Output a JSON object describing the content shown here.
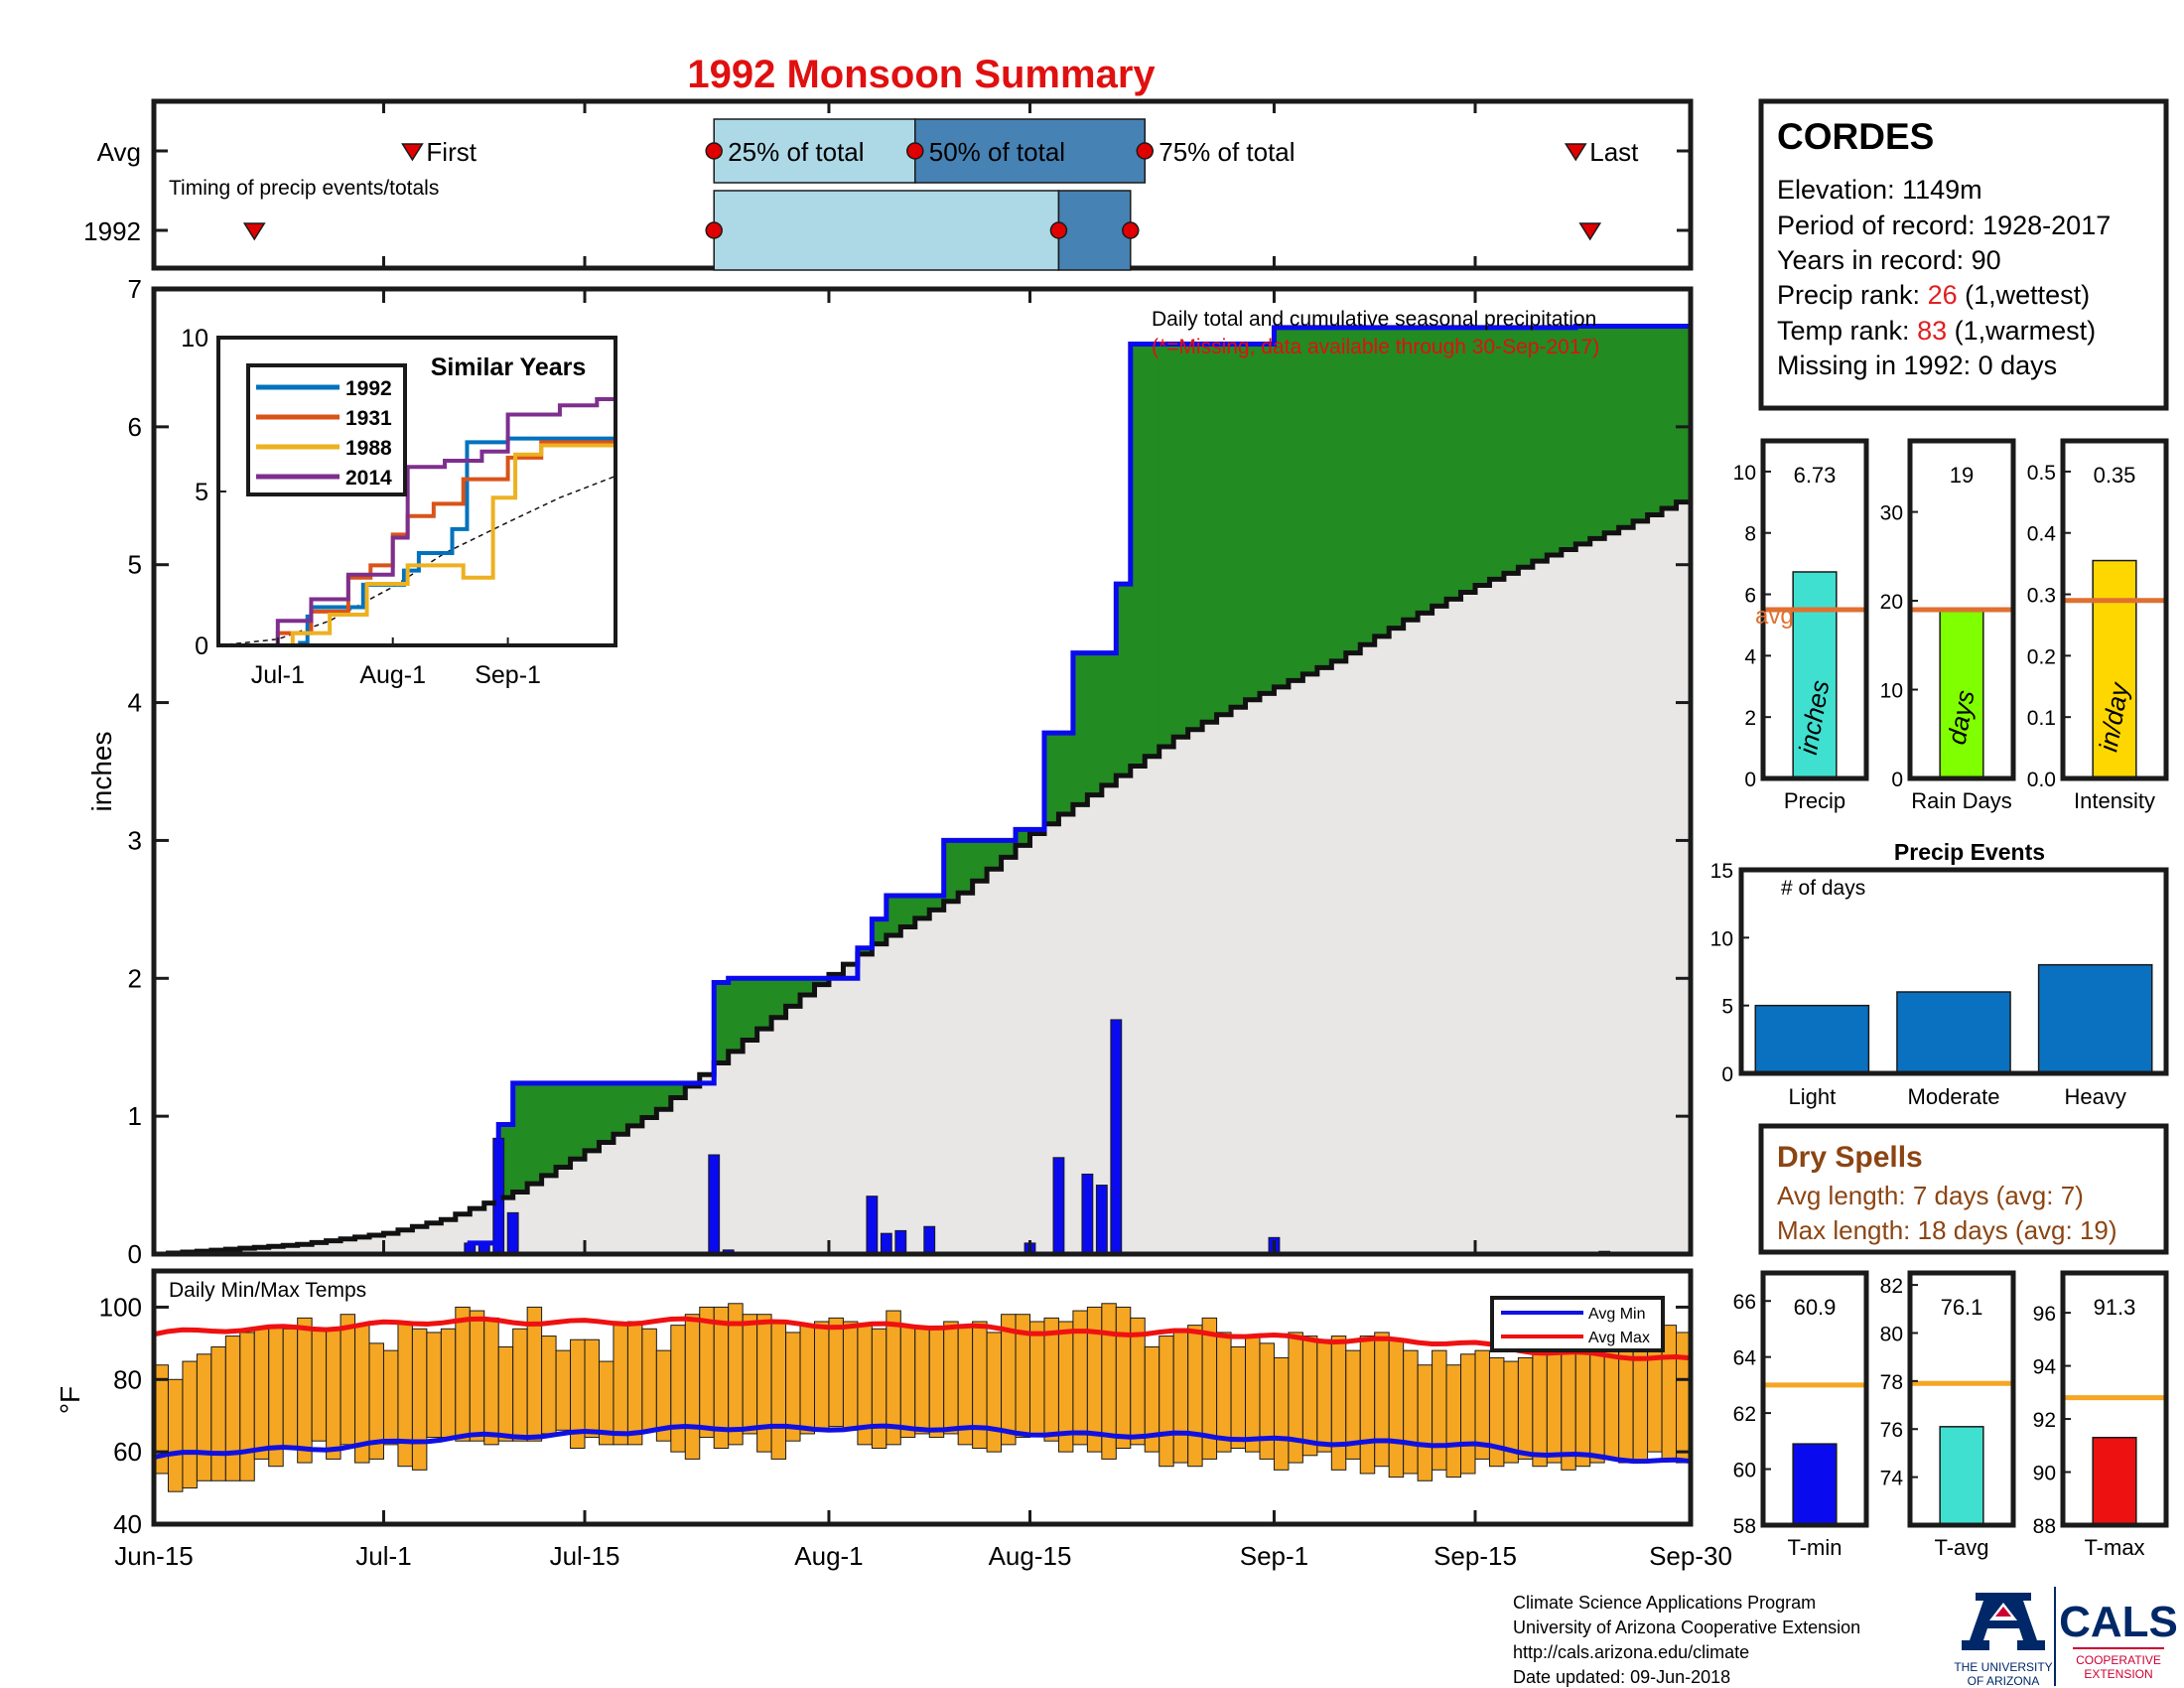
{
  "title": "1992 Monsoon Summary",
  "colors": {
    "title_red": "#e01010",
    "cumulative_blue": "#0a0aee",
    "above_green": "#228b22",
    "below_brown": "#b8860b",
    "normal_gray": "#e8e7e6",
    "daily_bar_blue": "#0a0aee",
    "light_blue": "#add8e6",
    "steel_blue": "#4682b4",
    "marker_red": "#e00000",
    "avg_orange": "#e07030",
    "temp_bar_orange": "#f5a623",
    "avg_min_blue": "#1010e0",
    "avg_max_red": "#ee1111",
    "event_blue": "#0a70c0",
    "dry_brown": "#8b4513",
    "rank_red": "#e02020",
    "cyan": "#40e0d0",
    "lime": "#80ff00",
    "gold": "#ffd700"
  },
  "timing": {
    "row_labels": [
      "Avg",
      "1992"
    ],
    "note": "Timing of precip events/totals",
    "first_label": "First",
    "last_label": "Last",
    "pct25_label": "25% of total",
    "pct50_label": "50% of total",
    "pct75_label": "75% of total",
    "avg": {
      "first": "2018-07-03",
      "p25": "2018-07-24",
      "p50": "2018-08-07",
      "p75": "2018-08-23",
      "last": "2018-09-22"
    },
    "y1992": {
      "first": "2018-06-22",
      "p25": "2018-07-24",
      "p50": "2018-08-17",
      "p75": "2018-08-22",
      "last": "2018-09-23"
    }
  },
  "chart_data": [
    {
      "type": "area",
      "name": "main",
      "xlabel": "",
      "ylabel": "inches",
      "ylim": [
        0,
        7
      ],
      "yticks": [
        0,
        1,
        2,
        3,
        4,
        5,
        6,
        7
      ],
      "xlim": [
        "2018-06-15",
        "2018-09-30"
      ],
      "xticks": [
        "Jun-15",
        "Jul-1",
        "Jul-15",
        "Aug-1",
        "Aug-15",
        "Sep-1",
        "Sep-15",
        "Sep-30"
      ],
      "annotation": "Daily total and cumulative seasonal precipitation",
      "annotation_missing": "(*=Missing, data available through 30-Sep-2017)",
      "normal_cumulative": {
        "x": [
          "2018-06-15",
          "2018-06-25",
          "2018-07-01",
          "2018-07-05",
          "2018-07-10",
          "2018-07-15",
          "2018-07-20",
          "2018-07-25",
          "2018-07-30",
          "2018-08-04",
          "2018-08-10",
          "2018-08-15",
          "2018-08-20",
          "2018-08-25",
          "2018-08-30",
          "2018-09-05",
          "2018-09-10",
          "2018-09-15",
          "2018-09-20",
          "2018-09-25",
          "2018-09-30"
        ],
        "y": [
          0,
          0.07,
          0.15,
          0.25,
          0.45,
          0.75,
          1.05,
          1.47,
          1.88,
          2.25,
          2.62,
          3.05,
          3.4,
          3.75,
          4.02,
          4.3,
          4.6,
          4.85,
          5.07,
          5.27,
          5.5
        ]
      },
      "cumulative_1992": {
        "x": [
          "2018-06-15",
          "2018-07-07",
          "2018-07-08",
          "2018-07-09",
          "2018-07-10",
          "2018-07-23",
          "2018-07-24",
          "2018-07-25",
          "2018-08-02",
          "2018-08-03",
          "2018-08-04",
          "2018-08-05",
          "2018-08-09",
          "2018-08-14",
          "2018-08-16",
          "2018-08-18",
          "2018-08-19",
          "2018-08-21",
          "2018-08-22",
          "2018-09-01",
          "2018-09-22"
        ],
        "y": [
          0,
          0.08,
          0.08,
          0.94,
          1.24,
          1.24,
          1.97,
          2.0,
          2.0,
          2.22,
          2.43,
          2.6,
          3.0,
          3.08,
          3.78,
          4.36,
          4.36,
          4.86,
          6.6,
          6.72,
          6.73
        ]
      },
      "daily": {
        "x": [
          "2018-07-07",
          "2018-07-08",
          "2018-07-09",
          "2018-07-10",
          "2018-07-24",
          "2018-07-25",
          "2018-08-04",
          "2018-08-05",
          "2018-08-06",
          "2018-08-08",
          "2018-08-15",
          "2018-08-17",
          "2018-08-19",
          "2018-08-20",
          "2018-08-21",
          "2018-09-01",
          "2018-09-24"
        ],
        "y": [
          0.08,
          0.08,
          0.84,
          0.3,
          0.72,
          0.03,
          0.42,
          0.15,
          0.17,
          0.2,
          0.08,
          0.7,
          0.58,
          0.5,
          1.7,
          0.12,
          0.02
        ]
      },
      "inset": {
        "title": "Similar Years",
        "ylim": [
          0,
          10
        ],
        "yticks": [
          0,
          5,
          10
        ],
        "xticks": [
          "Jul-1",
          "Aug-1",
          "Sep-1"
        ],
        "series": [
          {
            "name": "1992",
            "color": "#0072bd",
            "x": [
              "2018-06-15",
              "2018-07-07",
              "2018-07-09",
              "2018-07-10",
              "2018-07-24",
              "2018-08-04",
              "2018-08-08",
              "2018-08-17",
              "2018-08-21",
              "2018-09-01",
              "2018-09-30"
            ],
            "y": [
              0,
              0.08,
              0.94,
              1.24,
              1.97,
              2.43,
              3.0,
              3.78,
              6.6,
              6.72,
              6.73
            ]
          },
          {
            "name": "1931",
            "color": "#d95319",
            "x": [
              "2018-06-15",
              "2018-07-01",
              "2018-07-10",
              "2018-07-20",
              "2018-07-26",
              "2018-08-01",
              "2018-08-05",
              "2018-08-12",
              "2018-08-20",
              "2018-09-01",
              "2018-09-10",
              "2018-09-30"
            ],
            "y": [
              0,
              0.4,
              1.1,
              2.2,
              2.6,
              3.6,
              4.2,
              4.6,
              5.4,
              6.1,
              6.6,
              6.9
            ]
          },
          {
            "name": "1988",
            "color": "#edb120",
            "x": [
              "2018-06-15",
              "2018-07-05",
              "2018-07-15",
              "2018-07-25",
              "2018-08-05",
              "2018-08-20",
              "2018-08-28",
              "2018-09-03",
              "2018-09-10",
              "2018-09-30"
            ],
            "y": [
              0,
              0.4,
              1.0,
              2.0,
              2.6,
              2.2,
              4.8,
              6.2,
              6.5,
              6.6
            ]
          },
          {
            "name": "2014",
            "color": "#7e2f8e",
            "x": [
              "2018-06-15",
              "2018-07-01",
              "2018-07-10",
              "2018-07-20",
              "2018-08-01",
              "2018-08-05",
              "2018-08-15",
              "2018-08-25",
              "2018-09-01",
              "2018-09-15",
              "2018-09-25",
              "2018-09-30"
            ],
            "y": [
              0,
              0.8,
              1.5,
              2.3,
              3.5,
              5.8,
              6.0,
              6.3,
              7.5,
              7.8,
              8.0,
              8.2
            ]
          }
        ],
        "normal": {
          "x": [
            "2018-06-15",
            "2018-07-01",
            "2018-07-15",
            "2018-08-01",
            "2018-08-15",
            "2018-09-01",
            "2018-09-15",
            "2018-09-30"
          ],
          "y": [
            0,
            0.2,
            0.8,
            1.9,
            3.0,
            4.0,
            4.8,
            5.5
          ]
        }
      }
    },
    {
      "type": "bar",
      "name": "temps",
      "title": "Daily Min/Max Temps",
      "ylabel": "°F",
      "ylim": [
        40,
        110
      ],
      "yticks": [
        40,
        60,
        80,
        100
      ],
      "legend": [
        "Avg Min",
        "Avg Max"
      ],
      "start": "2018-06-15",
      "tmax": [
        84,
        80,
        85,
        87,
        89,
        92,
        93,
        94,
        95,
        94,
        97,
        94,
        94,
        98,
        95,
        90,
        88,
        96,
        94,
        93,
        94,
        100,
        99,
        97,
        89,
        94,
        100,
        92,
        88,
        91,
        91,
        85,
        95,
        96,
        94,
        88,
        95,
        98,
        100,
        100,
        101,
        98,
        98,
        96,
        93,
        95,
        96,
        97,
        96,
        95,
        94,
        99,
        95,
        94,
        94,
        96,
        95,
        96,
        93,
        98,
        98,
        96,
        97,
        96,
        99,
        100,
        101,
        100,
        97,
        89,
        92,
        94,
        95,
        97,
        93,
        89,
        92,
        90,
        86,
        93,
        92,
        91,
        92,
        88,
        92,
        93,
        91,
        88,
        84,
        88,
        84,
        87,
        88,
        86,
        85,
        86,
        88,
        88,
        91,
        90,
        90,
        90,
        92,
        93,
        93,
        95,
        93
      ],
      "tmin": [
        54,
        49,
        50,
        52,
        52,
        52,
        52,
        58,
        56,
        61,
        57,
        63,
        58,
        62,
        57,
        58,
        62,
        56,
        55,
        64,
        64,
        63,
        63,
        62,
        63,
        63,
        63,
        65,
        66,
        61,
        64,
        62,
        62,
        62,
        66,
        63,
        60,
        58,
        64,
        61,
        62,
        65,
        60,
        58,
        63,
        65,
        66,
        67,
        66,
        62,
        61,
        62,
        64,
        65,
        64,
        65,
        62,
        61,
        60,
        62,
        64,
        65,
        63,
        60,
        62,
        60,
        58,
        61,
        62,
        60,
        56,
        57,
        56,
        58,
        60,
        61,
        60,
        58,
        55,
        57,
        59,
        60,
        55,
        58,
        54,
        56,
        53,
        54,
        52,
        55,
        53,
        54,
        58,
        56,
        57,
        58,
        56,
        57,
        55,
        56,
        57,
        58,
        57,
        57,
        60,
        58,
        57
      ],
      "avg_max": {
        "x": [
          "2018-06-15",
          "2018-07-01",
          "2018-07-15",
          "2018-08-01",
          "2018-08-15",
          "2018-09-01",
          "2018-09-15",
          "2018-09-30"
        ],
        "y": [
          92.5,
          95.5,
          96.2,
          95.4,
          93.5,
          92.0,
          89.5,
          85.0
        ]
      },
      "avg_min": {
        "x": [
          "2018-06-15",
          "2018-07-01",
          "2018-07-15",
          "2018-08-01",
          "2018-08-15",
          "2018-09-01",
          "2018-09-15",
          "2018-09-30"
        ],
        "y": [
          58.5,
          62.5,
          65.5,
          67.0,
          65.5,
          63.5,
          61.5,
          56.5
        ]
      }
    },
    {
      "type": "bar",
      "name": "precip",
      "categories": [
        "Precip"
      ],
      "values": [
        6.73
      ],
      "value_label": "6.73",
      "avg": 5.5,
      "avg_label": "avg",
      "unit": "inches",
      "ylim": [
        0,
        11
      ],
      "yticks": [
        0,
        2,
        4,
        6,
        8,
        10
      ]
    },
    {
      "type": "bar",
      "name": "raindays",
      "categories": [
        "Rain Days"
      ],
      "values": [
        19
      ],
      "value_label": "19",
      "avg": 19,
      "unit": "days",
      "ylim": [
        0,
        38
      ],
      "yticks": [
        0,
        10,
        20,
        30
      ]
    },
    {
      "type": "bar",
      "name": "intensity",
      "categories": [
        "Intensity"
      ],
      "values": [
        0.355
      ],
      "value_label": "0.35",
      "avg": 0.29,
      "unit": "in/day",
      "ylim": [
        0,
        0.55
      ],
      "yticks": [
        0,
        0.1,
        0.2,
        0.3,
        0.4,
        0.5
      ]
    },
    {
      "type": "bar",
      "name": "events",
      "title": "Precip Events",
      "ylabel_inside": "# of days",
      "categories": [
        "Light",
        "Moderate",
        "Heavy"
      ],
      "values": [
        5,
        6,
        8
      ],
      "ylim": [
        0,
        15
      ],
      "yticks": [
        0,
        5,
        10,
        15
      ]
    },
    {
      "type": "bar",
      "name": "tmin",
      "categories": [
        "T-min"
      ],
      "values": [
        60.9
      ],
      "value_label": "60.9",
      "avg": 63,
      "ylim": [
        58,
        67
      ],
      "yticks": [
        58,
        60,
        62,
        64,
        66
      ]
    },
    {
      "type": "bar",
      "name": "tavg",
      "categories": [
        "T-avg"
      ],
      "values": [
        76.1
      ],
      "value_label": "76.1",
      "avg": 77.9,
      "ylim": [
        72,
        82.5
      ],
      "yticks": [
        74,
        76,
        78,
        80,
        82
      ]
    },
    {
      "type": "bar",
      "name": "tmax",
      "categories": [
        "T-max"
      ],
      "values": [
        91.3
      ],
      "value_label": "91.3",
      "avg": 92.8,
      "ylim": [
        88,
        97.5
      ],
      "yticks": [
        88,
        90,
        92,
        94,
        96
      ]
    }
  ],
  "station": {
    "name": "CORDES",
    "elevation": "Elevation: 1149m",
    "period": "Period of record: 1928-2017",
    "years": "Years in record: 90",
    "precip_rank_label": "Precip rank: ",
    "precip_rank_value": "26",
    "precip_rank_suffix": " (1,wettest)",
    "temp_rank_label": "Temp rank: ",
    "temp_rank_value": "83",
    "temp_rank_suffix": " (1,warmest)",
    "missing": "Missing in 1992: 0 days"
  },
  "dry_spells": {
    "title": "Dry Spells",
    "avg_length": "Avg length: 7 days (avg: 7)",
    "max_length": "Max length: 18 days (avg: 19)"
  },
  "footer": {
    "line1": "Climate Science Applications Program",
    "line2": "University of Arizona Cooperative Extension",
    "line3": "http://cals.arizona.edu/climate",
    "line4": " Date updated: 09-Jun-2018"
  },
  "logo": {
    "ua_line1": "THE UNIVERSITY",
    "ua_line2": "OF ARIZONA",
    "cals": "CALS",
    "coop1": "COOPERATIVE",
    "coop2": "EXTENSION"
  }
}
